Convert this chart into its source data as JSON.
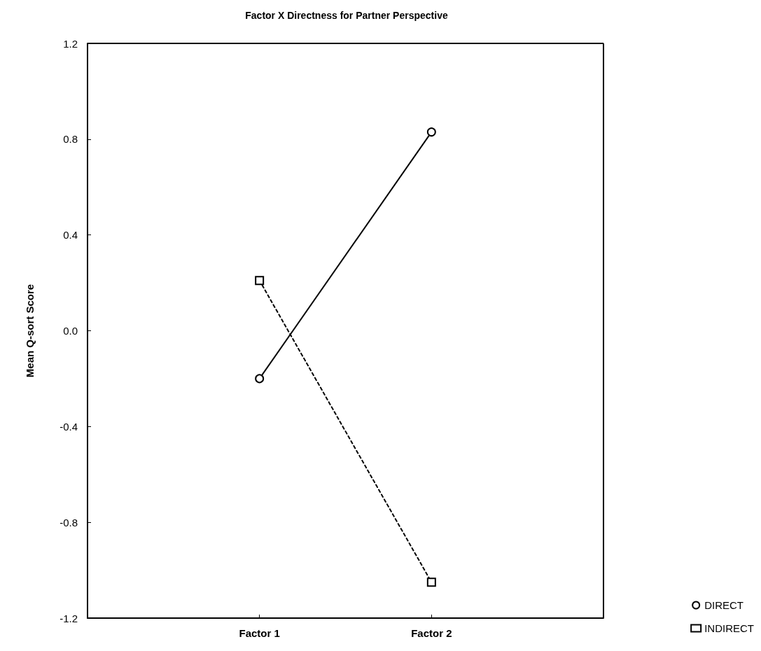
{
  "chart_data": {
    "type": "line",
    "title": "Factor X Directness for Partner Perspective",
    "ylabel": "Mean Q-sort Score",
    "categories": [
      "Factor 1",
      "Factor 2"
    ],
    "series": [
      {
        "name": "DIRECT",
        "color": "#000000",
        "values": [
          -0.2,
          0.83
        ],
        "marker": "circle",
        "line_style": "solid"
      },
      {
        "name": "INDIRECT",
        "color": "#000000",
        "values": [
          0.21,
          -1.05
        ],
        "marker": "square",
        "line_style": "dashed"
      }
    ],
    "ylim": [
      -1.2,
      1.2
    ],
    "yticks": [
      -1.2,
      -0.8,
      -0.4,
      {
        "value": 0,
        "label": "0.0"
      },
      0.4,
      0.8,
      1.2
    ],
    "grid": false,
    "legend": "bottom right"
  }
}
